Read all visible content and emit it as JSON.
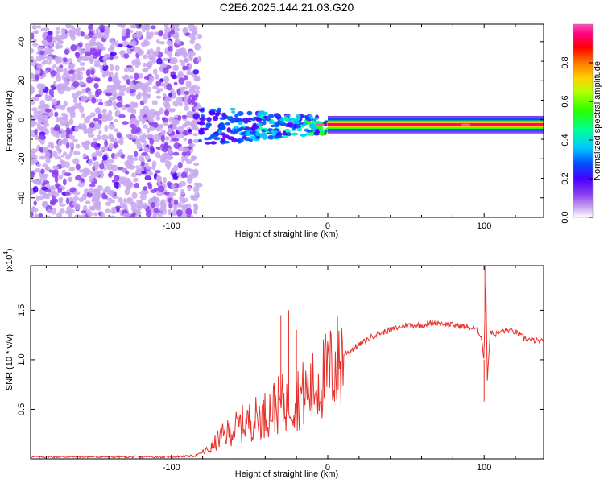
{
  "title": "C2E6.2025.144.21.03.G20",
  "chart_data": [
    {
      "type": "heatmap",
      "xlabel": "Height of straight line (km)",
      "ylabel": "Frequency (Hz)",
      "xlim": [
        -190,
        138
      ],
      "ylim": [
        -50,
        49
      ],
      "xticks": [
        -100,
        0,
        100
      ],
      "yticks": [
        -40,
        -20,
        0,
        20,
        40
      ],
      "colorbar": {
        "label": "Normalized spectral amplitude",
        "range": [
          0,
          1
        ],
        "ticks": [
          "0.0",
          "0.2",
          "0.4",
          "0.6",
          "0.8"
        ],
        "colors": [
          "#ffffff",
          "#c8a8f0",
          "#8c3cf0",
          "#4800ff",
          "#0050ff",
          "#00c8ff",
          "#00ff9a",
          "#28ff00",
          "#b4ff00",
          "#ffd200",
          "#ff7800",
          "#ff0000",
          "#ff0080",
          "#ff50b4"
        ]
      },
      "regions": [
        {
          "x": [
            -190,
            -82
          ],
          "description_value": "noise 0.05-0.3"
        },
        {
          "x": [
            -82,
            0
          ],
          "center_hz": -3,
          "amplitude": [
            0.2,
            0.5
          ]
        },
        {
          "x": [
            0,
            138
          ],
          "center_hz": -2.5,
          "amplitude": [
            0.7,
            1.0
          ]
        }
      ]
    },
    {
      "type": "line",
      "xlabel": "Height of straight line (km)",
      "ylabel": "SNR (10 * v/v)",
      "yscale_label": "(x10",
      "yscale_exp": "4",
      "xlim": [
        -190,
        138
      ],
      "ylim": [
        0,
        1.95
      ],
      "xticks": [
        -100,
        0,
        100
      ],
      "yticks": [
        "0.5",
        "1.0",
        "1.5"
      ],
      "series_color": "#e8302a",
      "series": [
        {
          "x": [
            -190,
            -150,
            -100,
            -85,
            -75,
            -70,
            -65,
            -60,
            -55,
            -50,
            -45,
            -40,
            -35,
            -30,
            -25,
            -20,
            -15,
            -10,
            -5,
            0,
            5,
            10,
            15,
            20,
            25,
            30,
            40,
            50,
            60,
            70,
            80,
            90,
            95,
            98,
            100,
            101,
            102,
            104,
            106,
            110,
            115,
            120,
            125,
            130,
            138
          ],
          "y": [
            0.02,
            0.02,
            0.02,
            0.03,
            0.1,
            0.2,
            0.25,
            0.3,
            0.35,
            0.38,
            0.42,
            0.45,
            0.52,
            0.55,
            0.6,
            0.62,
            0.65,
            0.7,
            0.8,
            0.85,
            0.95,
            1.05,
            1.1,
            1.15,
            1.2,
            1.25,
            1.3,
            1.35,
            1.35,
            1.38,
            1.35,
            1.33,
            1.3,
            1.25,
            1.0,
            1.95,
            0.8,
            1.3,
            1.25,
            1.28,
            1.3,
            1.28,
            1.22,
            1.2,
            1.18
          ]
        }
      ]
    }
  ]
}
